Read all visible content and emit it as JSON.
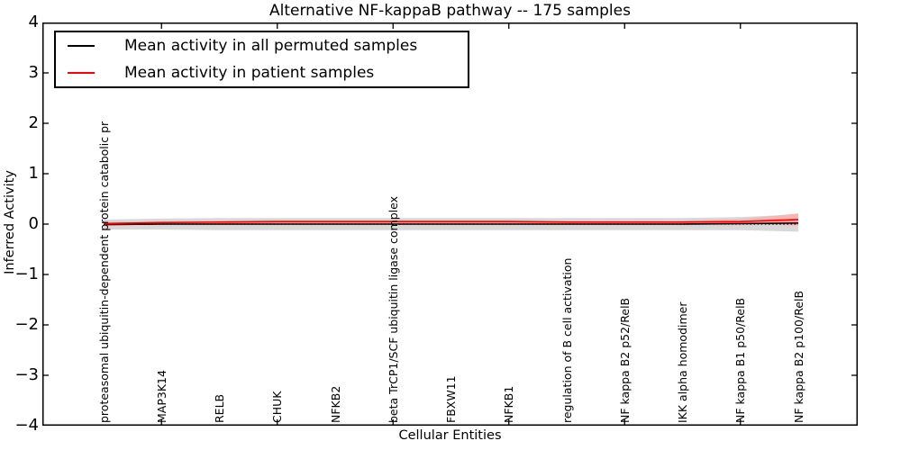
{
  "figure": {
    "background_color": "#ffffff",
    "frame_color": "#000000"
  },
  "chart_data": {
    "type": "line",
    "title": "Alternative NF-kappaB pathway -- 175 samples",
    "xlabel": "Cellular Entities",
    "ylabel": "Inferred Activity",
    "ylim": [
      -4,
      4
    ],
    "yticks": [
      4,
      3,
      2,
      1,
      0,
      -1,
      -2,
      -3,
      -4
    ],
    "grid": false,
    "legend_position": "upper left",
    "categories": [
      "proteasomal ubiquitin-dependent protein catabolic pr",
      "MAP3K14",
      "RELB",
      "CHUK",
      "NFKB2",
      "beta TrCP1/SCF ubiquitin ligase complex",
      "FBXW11",
      "NFKB1",
      "regulation of B cell activation",
      "NF kappa B2 p52/RelB",
      "IKK alpha homodimer",
      "NF kappa B1 p50/RelB",
      "NF kappa B2 p100/RelB"
    ],
    "series": [
      {
        "name": "Mean activity in all permuted samples",
        "color": "#000000",
        "values": [
          -0.01,
          0.0,
          0.0,
          0.0,
          0.0,
          0.0,
          0.0,
          0.0,
          0.0,
          0.0,
          0.0,
          0.01,
          0.02
        ],
        "band_half_width": [
          0.1,
          0.11,
          0.12,
          0.12,
          0.12,
          0.12,
          0.12,
          0.12,
          0.12,
          0.12,
          0.12,
          0.13,
          0.17
        ],
        "band_color": "#d8d8d8"
      },
      {
        "name": "Mean activity in patient samples",
        "color": "#ff0000",
        "values": [
          0.01,
          0.03,
          0.04,
          0.05,
          0.05,
          0.05,
          0.05,
          0.05,
          0.04,
          0.04,
          0.04,
          0.05,
          0.09
        ],
        "band_half_width": [
          0.03,
          0.03,
          0.03,
          0.03,
          0.03,
          0.03,
          0.03,
          0.03,
          0.03,
          0.03,
          0.03,
          0.05,
          0.12
        ],
        "band_color": "#ffb2b2"
      }
    ],
    "zero_line": {
      "value": 0,
      "color": "#000000",
      "style": "dotted"
    }
  }
}
